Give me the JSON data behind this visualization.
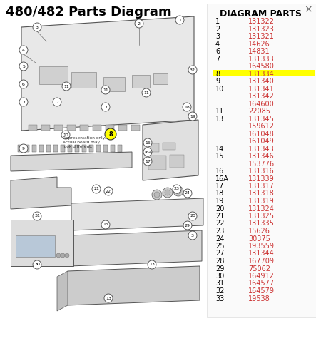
{
  "title": "480/482 Parts Diagram",
  "title_fontsize": 13,
  "title_fontweight": "bold",
  "bg_color": "#ffffff",
  "diagram_parts_header": "DIAGRAM PARTS",
  "parts": [
    {
      "num": "1",
      "code": "131322"
    },
    {
      "num": "2",
      "code": "131323"
    },
    {
      "num": "3",
      "code": "131321"
    },
    {
      "num": "4",
      "code": "14626"
    },
    {
      "num": "6",
      "code": "14831"
    },
    {
      "num": "7",
      "code": "131333"
    },
    {
      "num": "",
      "code": "164580"
    },
    {
      "num": "8",
      "code": "131334",
      "highlight": true
    },
    {
      "num": "9",
      "code": "131340"
    },
    {
      "num": "10",
      "code": "131341"
    },
    {
      "num": "",
      "code": "131342"
    },
    {
      "num": "",
      "code": "164600"
    },
    {
      "num": "11",
      "code": "22085"
    },
    {
      "num": "13",
      "code": "131345"
    },
    {
      "num": "",
      "code": "159612"
    },
    {
      "num": "",
      "code": "161048"
    },
    {
      "num": "",
      "code": "161049"
    },
    {
      "num": "14",
      "code": "131343"
    },
    {
      "num": "15",
      "code": "131346"
    },
    {
      "num": "",
      "code": "153776"
    },
    {
      "num": "16",
      "code": "131316"
    },
    {
      "num": "16A",
      "code": "131339"
    },
    {
      "num": "17",
      "code": "131317"
    },
    {
      "num": "18",
      "code": "131318"
    },
    {
      "num": "19",
      "code": "131319"
    },
    {
      "num": "20",
      "code": "131324"
    },
    {
      "num": "21",
      "code": "131325"
    },
    {
      "num": "22",
      "code": "131335"
    },
    {
      "num": "23",
      "code": "15626"
    },
    {
      "num": "24",
      "code": "30375"
    },
    {
      "num": "25",
      "code": "193559"
    },
    {
      "num": "27",
      "code": "131344"
    },
    {
      "num": "28",
      "code": "167709"
    },
    {
      "num": "29",
      "code": "75062"
    },
    {
      "num": "30",
      "code": "164912"
    },
    {
      "num": "31",
      "code": "164577"
    },
    {
      "num": "32",
      "code": "164579"
    },
    {
      "num": "33",
      "code": "19538"
    }
  ],
  "parts_header_color": "#000000",
  "parts_num_color": "#000000",
  "parts_code_color": "#cc3333",
  "highlight_bg": "#ffff00",
  "num_fontsize": 7,
  "code_fontsize": 7,
  "header_fontsize": 8.5
}
